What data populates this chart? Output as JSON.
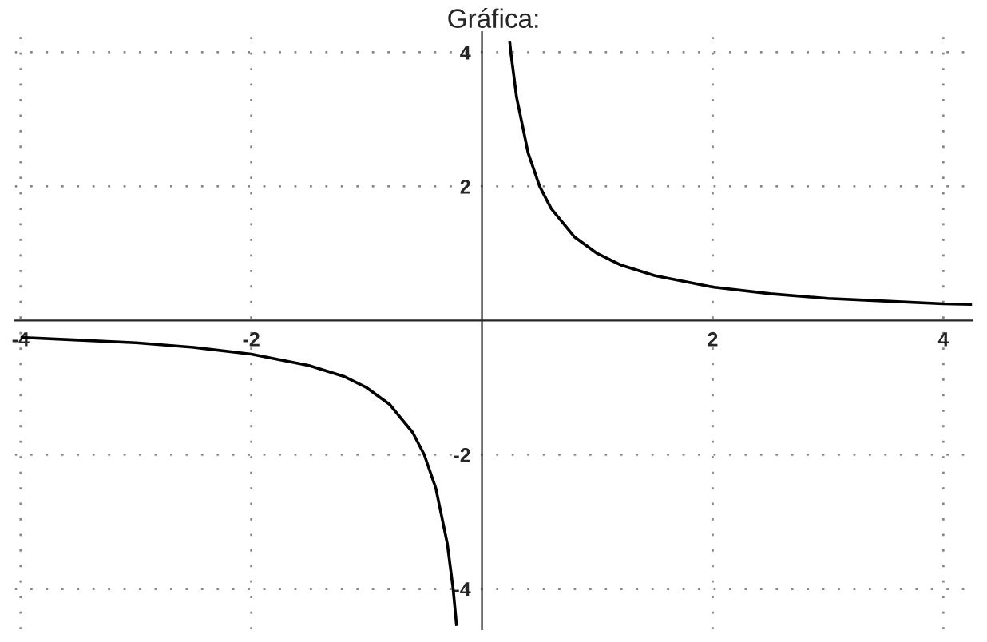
{
  "chart_data": {
    "type": "line",
    "title": "Gráfica:",
    "x": [
      -4,
      -3.5,
      -3,
      -2.5,
      -2,
      -1.5,
      -1.2,
      -1,
      -0.8,
      -0.6,
      -0.5,
      -0.4,
      -0.3,
      -0.25,
      -0.22,
      null,
      0.24,
      0.25,
      0.3,
      0.4,
      0.5,
      0.6,
      0.8,
      1,
      1.2,
      1.5,
      2,
      2.5,
      3,
      3.5,
      4,
      4.25
    ],
    "series": [
      {
        "color": "#000000",
        "values": [
          -0.25,
          -0.29,
          -0.33,
          -0.4,
          -0.5,
          -0.67,
          -0.83,
          -1,
          -1.25,
          -1.67,
          -2,
          -2.5,
          -3.33,
          -4,
          -4.55,
          null,
          4.17,
          4,
          3.33,
          2.5,
          2,
          1.67,
          1.25,
          1,
          0.83,
          0.67,
          0.5,
          0.4,
          0.33,
          0.29,
          0.25,
          0.24
        ]
      }
    ],
    "xlim": [
      -4.05,
      4.25
    ],
    "ylim": [
      -4.6,
      4.3
    ],
    "xticks": [
      -4,
      -2,
      2,
      4
    ],
    "yticks": [
      -4,
      -2,
      2,
      4
    ],
    "grid": true,
    "line_style": "solid",
    "marker": "none"
  }
}
